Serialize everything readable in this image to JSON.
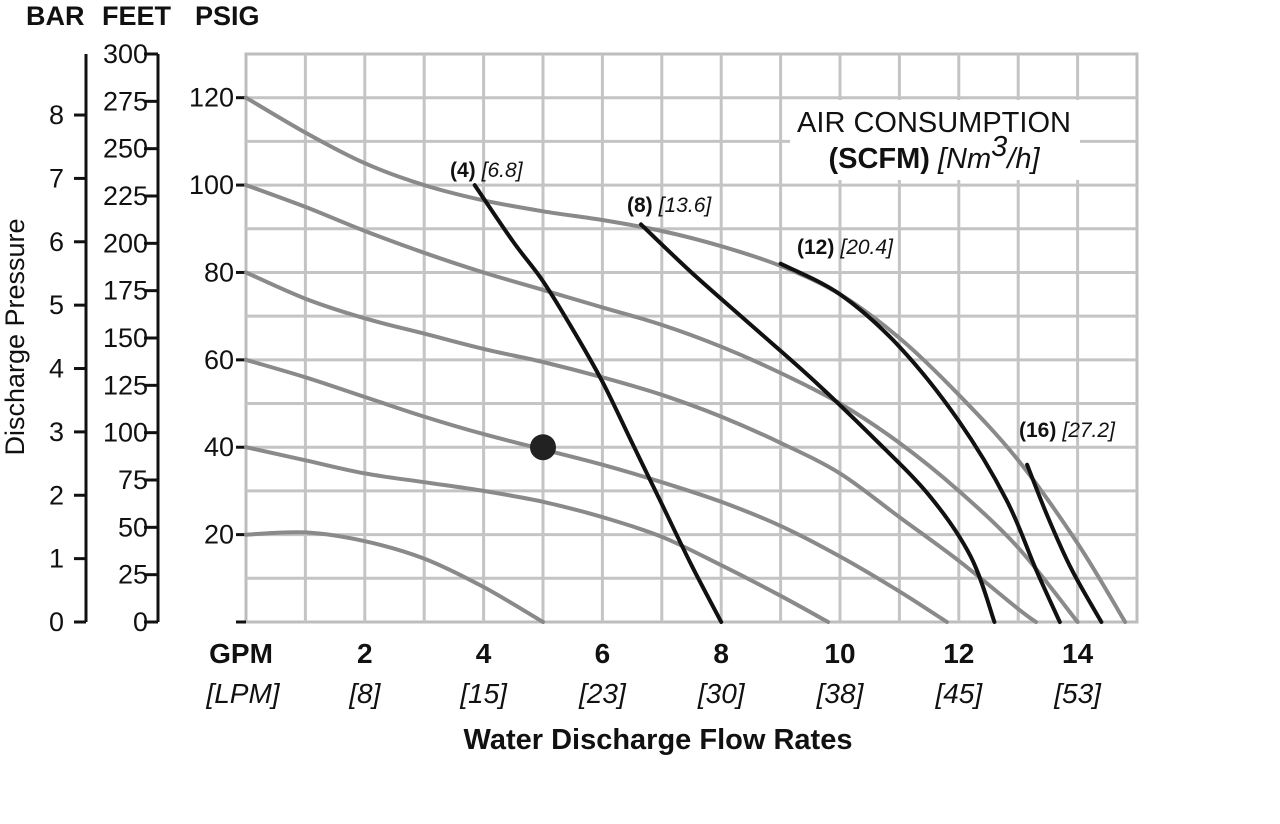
{
  "chart_data": {
    "type": "line",
    "title": "",
    "unit_headers": [
      "BAR",
      "FEET",
      "PSIG"
    ],
    "xlabel": "Water Discharge Flow Rates",
    "ylabel": "Discharge Pressure",
    "xlim": [
      0,
      15
    ],
    "ylim": [
      0,
      130
    ],
    "grid": true,
    "x_unit_label": "GPM",
    "x_unit_sub_label": "[LPM]",
    "x_ticks": [
      {
        "value": 2,
        "label": "2",
        "sub": "[8]"
      },
      {
        "value": 4,
        "label": "4",
        "sub": "[15]"
      },
      {
        "value": 6,
        "label": "6",
        "sub": "[23]"
      },
      {
        "value": 8,
        "label": "8",
        "sub": "[30]"
      },
      {
        "value": 10,
        "label": "10",
        "sub": "[38]"
      },
      {
        "value": 12,
        "label": "12",
        "sub": "[45]"
      },
      {
        "value": 14,
        "label": "14",
        "sub": "[53]"
      }
    ],
    "psig_ticks": [
      {
        "value": 20,
        "label": "20"
      },
      {
        "value": 40,
        "label": "40"
      },
      {
        "value": 60,
        "label": "60"
      },
      {
        "value": 80,
        "label": "80"
      },
      {
        "value": 100,
        "label": "100"
      },
      {
        "value": 120,
        "label": "120"
      }
    ],
    "feet_ticks": [
      {
        "value": 0,
        "label": "0"
      },
      {
        "value": 25,
        "label": "25"
      },
      {
        "value": 50,
        "label": "50"
      },
      {
        "value": 75,
        "label": "75"
      },
      {
        "value": 100,
        "label": "100"
      },
      {
        "value": 125,
        "label": "125"
      },
      {
        "value": 150,
        "label": "150"
      },
      {
        "value": 175,
        "label": "175"
      },
      {
        "value": 200,
        "label": "200"
      },
      {
        "value": 225,
        "label": "225"
      },
      {
        "value": 250,
        "label": "250"
      },
      {
        "value": 275,
        "label": "275"
      },
      {
        "value": 300,
        "label": "300"
      }
    ],
    "bar_ticks": [
      {
        "value": 0,
        "label": "0"
      },
      {
        "value": 1,
        "label": "1"
      },
      {
        "value": 2,
        "label": "2"
      },
      {
        "value": 3,
        "label": "3"
      },
      {
        "value": 4,
        "label": "4"
      },
      {
        "value": 5,
        "label": "5"
      },
      {
        "value": 6,
        "label": "6"
      },
      {
        "value": 7,
        "label": "7"
      },
      {
        "value": 8,
        "label": "8"
      }
    ],
    "legend": {
      "line1": "AIR CONSUMPTION",
      "line2_bold": "(SCFM)",
      "line2_italic_pre": "[Nm",
      "line2_sup": "3",
      "line2_italic_post": "/h]"
    },
    "pressure_curves": [
      {
        "points": [
          [
            0,
            120
          ],
          [
            1,
            112
          ],
          [
            2,
            105
          ],
          [
            3,
            100
          ],
          [
            4,
            96.5
          ],
          [
            5,
            94
          ],
          [
            6,
            92
          ],
          [
            7,
            89.5
          ],
          [
            8,
            86
          ],
          [
            9,
            81.5
          ],
          [
            10,
            75
          ],
          [
            11,
            65
          ],
          [
            12,
            52
          ],
          [
            13,
            37
          ],
          [
            14,
            18
          ],
          [
            14.8,
            0
          ]
        ]
      },
      {
        "points": [
          [
            0,
            100
          ],
          [
            1,
            95
          ],
          [
            2,
            89.5
          ],
          [
            3,
            84.5
          ],
          [
            4,
            80
          ],
          [
            5,
            76
          ],
          [
            6,
            72
          ],
          [
            7,
            68
          ],
          [
            8,
            63
          ],
          [
            9,
            57
          ],
          [
            10,
            50
          ],
          [
            11,
            41
          ],
          [
            12,
            30
          ],
          [
            13,
            17
          ],
          [
            14,
            0
          ]
        ]
      },
      {
        "points": [
          [
            0,
            80
          ],
          [
            1,
            74
          ],
          [
            2,
            69.5
          ],
          [
            3,
            66
          ],
          [
            4,
            62.5
          ],
          [
            5,
            59.5
          ],
          [
            6,
            56
          ],
          [
            7,
            52
          ],
          [
            8,
            47
          ],
          [
            9,
            41
          ],
          [
            10,
            34
          ],
          [
            11,
            24
          ],
          [
            12,
            14
          ],
          [
            13,
            3
          ],
          [
            13.3,
            0
          ]
        ]
      },
      {
        "points": [
          [
            0,
            60
          ],
          [
            1,
            56
          ],
          [
            2,
            51.5
          ],
          [
            3,
            47
          ],
          [
            4,
            43
          ],
          [
            5,
            39.5
          ],
          [
            6,
            36
          ],
          [
            7,
            32
          ],
          [
            8,
            27.5
          ],
          [
            9,
            22
          ],
          [
            10,
            15
          ],
          [
            11,
            7
          ],
          [
            11.8,
            0
          ]
        ]
      },
      {
        "points": [
          [
            0,
            40
          ],
          [
            1,
            37
          ],
          [
            2,
            34
          ],
          [
            3,
            32
          ],
          [
            4,
            30
          ],
          [
            5,
            27.5
          ],
          [
            6,
            24
          ],
          [
            7,
            19.5
          ],
          [
            8,
            13
          ],
          [
            9,
            6
          ],
          [
            9.8,
            0
          ]
        ]
      },
      {
        "points": [
          [
            0,
            20
          ],
          [
            1,
            20.5
          ],
          [
            2,
            18.5
          ],
          [
            3,
            14.5
          ],
          [
            4,
            8
          ],
          [
            5,
            0
          ]
        ]
      }
    ],
    "air_curves": [
      {
        "label": "(4)",
        "label_metric": "[6.8]",
        "points": [
          [
            3.85,
            100
          ],
          [
            4.5,
            87
          ],
          [
            5,
            78
          ],
          [
            5.5,
            67
          ],
          [
            6,
            55
          ],
          [
            6.5,
            41
          ],
          [
            7,
            27
          ],
          [
            7.5,
            13
          ],
          [
            8,
            0
          ]
        ]
      },
      {
        "label": "(8)",
        "label_metric": "[13.6]",
        "points": [
          [
            6.65,
            91
          ],
          [
            7.5,
            80
          ],
          [
            8.5,
            68
          ],
          [
            9.5,
            56
          ],
          [
            10.5,
            43
          ],
          [
            11.5,
            29
          ],
          [
            12.2,
            15
          ],
          [
            12.6,
            0
          ]
        ]
      },
      {
        "label": "(12)",
        "label_metric": "[20.4]",
        "points": [
          [
            9,
            82
          ],
          [
            10,
            75
          ],
          [
            11,
            63
          ],
          [
            12,
            46
          ],
          [
            12.8,
            28
          ],
          [
            13.3,
            12
          ],
          [
            13.7,
            0
          ]
        ]
      },
      {
        "label": "(16)",
        "label_metric": "[27.2]",
        "points": [
          [
            13.15,
            36
          ],
          [
            13.5,
            24
          ],
          [
            13.9,
            12
          ],
          [
            14.4,
            0
          ]
        ]
      }
    ],
    "marker": {
      "x": 5,
      "y": 40
    }
  }
}
